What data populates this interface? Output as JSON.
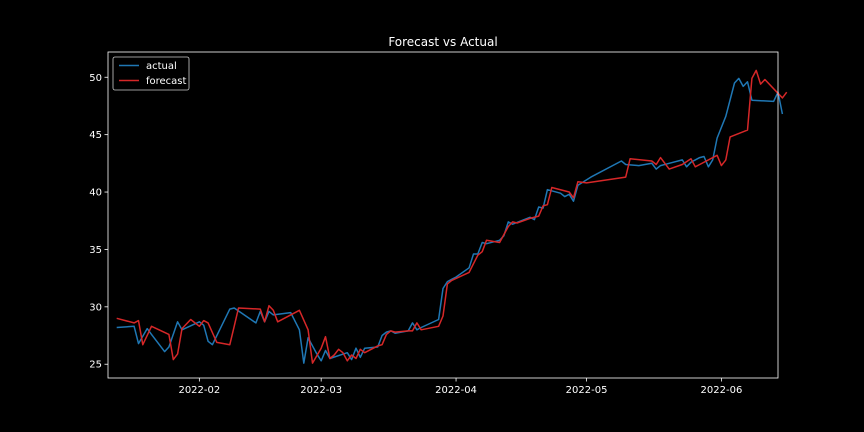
{
  "chart_data": {
    "type": "line",
    "title": "Forecast vs Actual",
    "xlabel": "",
    "ylabel": "",
    "x_domain": [
      "2022-01-11",
      "2022-06-14"
    ],
    "ylim": [
      23.8,
      52.2
    ],
    "x_ticks": [
      {
        "date": "2022-02-01",
        "label": "2022-02"
      },
      {
        "date": "2022-03-01",
        "label": "2022-03"
      },
      {
        "date": "2022-04-01",
        "label": "2022-04"
      },
      {
        "date": "2022-05-01",
        "label": "2022-05"
      },
      {
        "date": "2022-06-01",
        "label": "2022-06"
      }
    ],
    "y_ticks": [
      25,
      30,
      35,
      40,
      45,
      50
    ],
    "legend": {
      "position": "top-left"
    },
    "grid": false,
    "series": [
      {
        "name": "actual",
        "color": "#1f77b4",
        "points": [
          [
            "2022-01-13",
            28.2
          ],
          [
            "2022-01-17",
            28.3
          ],
          [
            "2022-01-18",
            26.8
          ],
          [
            "2022-01-20",
            28.1
          ],
          [
            "2022-01-21",
            27.6
          ],
          [
            "2022-01-24",
            26.1
          ],
          [
            "2022-01-25",
            26.5
          ],
          [
            "2022-01-27",
            28.7
          ],
          [
            "2022-01-28",
            28.0
          ],
          [
            "2022-02-01",
            28.7
          ],
          [
            "2022-02-02",
            28.4
          ],
          [
            "2022-02-03",
            27.0
          ],
          [
            "2022-02-04",
            26.7
          ],
          [
            "2022-02-08",
            29.8
          ],
          [
            "2022-02-09",
            29.9
          ],
          [
            "2022-02-14",
            28.6
          ],
          [
            "2022-02-15",
            29.6
          ],
          [
            "2022-02-16",
            28.7
          ],
          [
            "2022-02-17",
            29.6
          ],
          [
            "2022-02-18",
            29.3
          ],
          [
            "2022-02-22",
            29.5
          ],
          [
            "2022-02-24",
            28.0
          ],
          [
            "2022-02-25",
            25.1
          ],
          [
            "2022-02-26",
            27.3
          ],
          [
            "2022-02-28",
            25.9
          ],
          [
            "2022-03-01",
            25.3
          ],
          [
            "2022-03-02",
            26.2
          ],
          [
            "2022-03-03",
            25.5
          ],
          [
            "2022-03-07",
            26.0
          ],
          [
            "2022-03-08",
            25.4
          ],
          [
            "2022-03-09",
            26.4
          ],
          [
            "2022-03-10",
            25.6
          ],
          [
            "2022-03-11",
            26.4
          ],
          [
            "2022-03-14",
            26.5
          ],
          [
            "2022-03-15",
            27.5
          ],
          [
            "2022-03-16",
            27.8
          ],
          [
            "2022-03-17",
            27.9
          ],
          [
            "2022-03-18",
            27.7
          ],
          [
            "2022-03-21",
            27.9
          ],
          [
            "2022-03-22",
            28.6
          ],
          [
            "2022-03-23",
            28.0
          ],
          [
            "2022-03-24",
            28.2
          ],
          [
            "2022-03-28",
            28.9
          ],
          [
            "2022-03-29",
            31.6
          ],
          [
            "2022-03-30",
            32.2
          ],
          [
            "2022-03-31",
            32.4
          ],
          [
            "2022-04-01",
            32.6
          ],
          [
            "2022-04-04",
            33.4
          ],
          [
            "2022-04-05",
            34.6
          ],
          [
            "2022-04-06",
            34.6
          ],
          [
            "2022-04-07",
            35.6
          ],
          [
            "2022-04-08",
            35.5
          ],
          [
            "2022-04-11",
            35.8
          ],
          [
            "2022-04-12",
            36.2
          ],
          [
            "2022-04-13",
            37.4
          ],
          [
            "2022-04-14",
            37.2
          ],
          [
            "2022-04-18",
            37.8
          ],
          [
            "2022-04-19",
            37.6
          ],
          [
            "2022-04-20",
            38.7
          ],
          [
            "2022-04-21",
            38.6
          ],
          [
            "2022-04-22",
            40.2
          ],
          [
            "2022-04-25",
            39.9
          ],
          [
            "2022-04-26",
            39.6
          ],
          [
            "2022-04-27",
            39.8
          ],
          [
            "2022-04-28",
            39.2
          ],
          [
            "2022-04-29",
            40.6
          ],
          [
            "2022-05-02",
            41.3
          ],
          [
            "2022-05-09",
            42.7
          ],
          [
            "2022-05-10",
            42.4
          ],
          [
            "2022-05-13",
            42.3
          ],
          [
            "2022-05-16",
            42.5
          ],
          [
            "2022-05-17",
            42.0
          ],
          [
            "2022-05-18",
            42.3
          ],
          [
            "2022-05-20",
            42.5
          ],
          [
            "2022-05-23",
            42.8
          ],
          [
            "2022-05-24",
            42.2
          ],
          [
            "2022-05-25",
            42.6
          ],
          [
            "2022-05-27",
            43.0
          ],
          [
            "2022-05-28",
            43.1
          ],
          [
            "2022-05-29",
            42.2
          ],
          [
            "2022-05-30",
            42.8
          ],
          [
            "2022-05-31",
            44.7
          ],
          [
            "2022-06-02",
            46.6
          ],
          [
            "2022-06-04",
            49.5
          ],
          [
            "2022-06-05",
            49.9
          ],
          [
            "2022-06-06",
            49.2
          ],
          [
            "2022-06-07",
            49.6
          ],
          [
            "2022-06-08",
            48.0
          ],
          [
            "2022-06-13",
            47.9
          ],
          [
            "2022-06-14",
            48.7
          ],
          [
            "2022-06-15",
            46.8
          ]
        ]
      },
      {
        "name": "forecast",
        "color": "#d62728",
        "points": [
          [
            "2022-01-13",
            29.0
          ],
          [
            "2022-01-17",
            28.6
          ],
          [
            "2022-01-18",
            28.8
          ],
          [
            "2022-01-19",
            26.7
          ],
          [
            "2022-01-21",
            28.3
          ],
          [
            "2022-01-25",
            27.6
          ],
          [
            "2022-01-26",
            25.4
          ],
          [
            "2022-01-27",
            25.9
          ],
          [
            "2022-01-28",
            28.1
          ],
          [
            "2022-01-30",
            28.9
          ],
          [
            "2022-02-01",
            28.3
          ],
          [
            "2022-02-02",
            28.8
          ],
          [
            "2022-02-03",
            28.6
          ],
          [
            "2022-02-05",
            26.9
          ],
          [
            "2022-02-08",
            26.7
          ],
          [
            "2022-02-09",
            28.3
          ],
          [
            "2022-02-10",
            29.9
          ],
          [
            "2022-02-15",
            29.8
          ],
          [
            "2022-02-16",
            28.7
          ],
          [
            "2022-02-17",
            30.1
          ],
          [
            "2022-02-18",
            29.7
          ],
          [
            "2022-02-19",
            28.7
          ],
          [
            "2022-02-24",
            29.7
          ],
          [
            "2022-02-26",
            28.0
          ],
          [
            "2022-02-27",
            25.1
          ],
          [
            "2022-03-01",
            26.4
          ],
          [
            "2022-03-02",
            27.4
          ],
          [
            "2022-03-03",
            25.5
          ],
          [
            "2022-03-04",
            25.8
          ],
          [
            "2022-03-05",
            26.3
          ],
          [
            "2022-03-06",
            26.0
          ],
          [
            "2022-03-07",
            25.3
          ],
          [
            "2022-03-08",
            25.8
          ],
          [
            "2022-03-09",
            25.5
          ],
          [
            "2022-03-10",
            26.3
          ],
          [
            "2022-03-11",
            26.0
          ],
          [
            "2022-03-14",
            26.6
          ],
          [
            "2022-03-15",
            26.7
          ],
          [
            "2022-03-16",
            27.6
          ],
          [
            "2022-03-17",
            27.9
          ],
          [
            "2022-03-18",
            27.8
          ],
          [
            "2022-03-21",
            27.9
          ],
          [
            "2022-03-22",
            27.9
          ],
          [
            "2022-03-23",
            28.6
          ],
          [
            "2022-03-24",
            28.0
          ],
          [
            "2022-03-28",
            28.3
          ],
          [
            "2022-03-29",
            29.2
          ],
          [
            "2022-03-30",
            32.0
          ],
          [
            "2022-03-31",
            32.3
          ],
          [
            "2022-04-04",
            33.0
          ],
          [
            "2022-04-06",
            34.5
          ],
          [
            "2022-04-07",
            34.8
          ],
          [
            "2022-04-08",
            35.8
          ],
          [
            "2022-04-11",
            35.6
          ],
          [
            "2022-04-13",
            37.0
          ],
          [
            "2022-04-14",
            37.4
          ],
          [
            "2022-04-15",
            37.3
          ],
          [
            "2022-04-18",
            37.7
          ],
          [
            "2022-04-20",
            37.9
          ],
          [
            "2022-04-21",
            38.8
          ],
          [
            "2022-04-22",
            38.9
          ],
          [
            "2022-04-23",
            40.4
          ],
          [
            "2022-04-27",
            40.0
          ],
          [
            "2022-04-28",
            39.5
          ],
          [
            "2022-04-29",
            40.9
          ],
          [
            "2022-05-01",
            40.8
          ],
          [
            "2022-05-10",
            41.3
          ],
          [
            "2022-05-11",
            42.9
          ],
          [
            "2022-05-16",
            42.7
          ],
          [
            "2022-05-17",
            42.4
          ],
          [
            "2022-05-18",
            43.0
          ],
          [
            "2022-05-20",
            42.0
          ],
          [
            "2022-05-23",
            42.4
          ],
          [
            "2022-05-25",
            42.9
          ],
          [
            "2022-05-26",
            42.2
          ],
          [
            "2022-05-27",
            42.4
          ],
          [
            "2022-05-31",
            43.2
          ],
          [
            "2022-06-01",
            42.3
          ],
          [
            "2022-06-02",
            42.8
          ],
          [
            "2022-06-03",
            44.8
          ],
          [
            "2022-06-07",
            45.4
          ],
          [
            "2022-06-08",
            49.9
          ],
          [
            "2022-06-09",
            50.6
          ],
          [
            "2022-06-10",
            49.4
          ],
          [
            "2022-06-11",
            49.8
          ],
          [
            "2022-06-14",
            48.6
          ],
          [
            "2022-06-15",
            48.2
          ],
          [
            "2022-06-16",
            48.7
          ]
        ]
      }
    ]
  }
}
